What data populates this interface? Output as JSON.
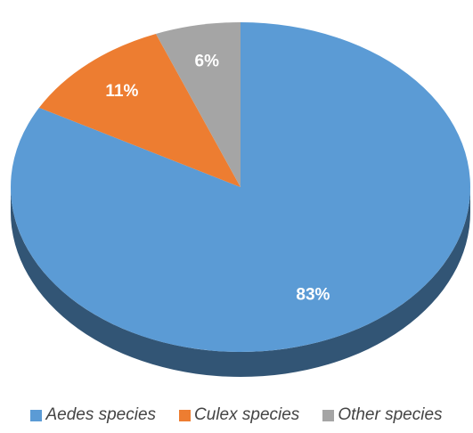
{
  "chart_data": {
    "type": "pie",
    "title": "",
    "categories": [
      "Aedes species",
      "Culex species",
      "Other species"
    ],
    "values": [
      83,
      11,
      6
    ],
    "labels": [
      "83%",
      "11%",
      "6%"
    ],
    "colors": [
      "#5b9bd5",
      "#ed7d31",
      "#a5a5a5"
    ],
    "legend_position": "bottom",
    "style": "3d"
  },
  "legend": {
    "items": [
      {
        "label": "Aedes species",
        "color": "#5b9bd5"
      },
      {
        "label": "Culex species",
        "color": "#ed7d31"
      },
      {
        "label": "Other species",
        "color": "#a5a5a5"
      }
    ]
  }
}
